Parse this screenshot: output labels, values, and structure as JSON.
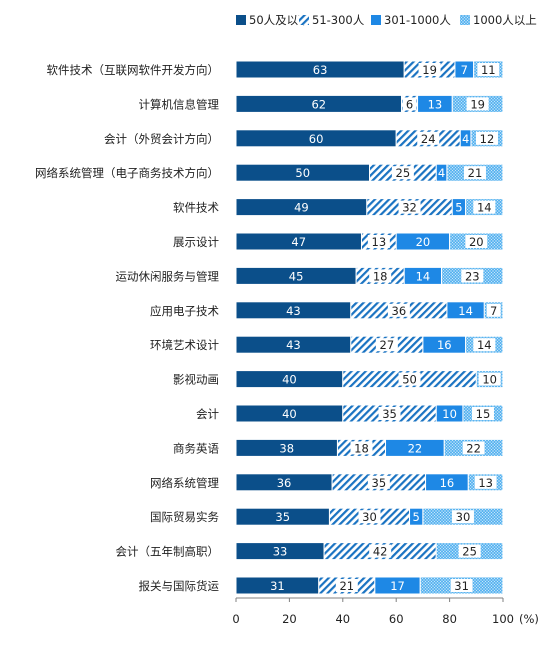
{
  "chart_data": {
    "type": "bar",
    "orientation": "horizontal",
    "stacked": true,
    "categories": [
      "软件技术（互联网软件开发方向）",
      "计算机信息管理",
      "会计（外贸会计方向）",
      "网络系统管理（电子商务技术方向）",
      "软件技术",
      "展示设计",
      "运动休闲服务与管理",
      "应用电子技术",
      "环境艺术设计",
      "影视动画",
      "会计",
      "商务英语",
      "网络系统管理",
      "国际贸易实务",
      "会计（五年制高职）",
      "报关与国际货运"
    ],
    "series": [
      {
        "name": "50人及以下",
        "color": "#0b4f8a",
        "pattern": "solid",
        "values": [
          63,
          62,
          60,
          50,
          49,
          47,
          45,
          43,
          43,
          40,
          40,
          38,
          36,
          35,
          33,
          31
        ]
      },
      {
        "name": "51-300人",
        "color": "#1a73c2",
        "pattern": "diagonal",
        "values": [
          19,
          6,
          24,
          25,
          32,
          13,
          18,
          36,
          27,
          50,
          35,
          18,
          35,
          30,
          42,
          21
        ]
      },
      {
        "name": "301-1000人",
        "color": "#1e88e5",
        "pattern": "solid",
        "values": [
          7,
          13,
          4,
          4,
          5,
          20,
          14,
          14,
          16,
          0,
          10,
          22,
          16,
          5,
          0,
          17
        ]
      },
      {
        "name": "1000人以上",
        "color": "#5ab4f0",
        "pattern": "dots",
        "values": [
          11,
          19,
          12,
          21,
          14,
          20,
          23,
          7,
          14,
          10,
          15,
          22,
          13,
          30,
          25,
          31
        ]
      }
    ],
    "data_labels": [
      [
        "63",
        "19",
        "7",
        "11"
      ],
      [
        "62",
        "6",
        "13",
        "19"
      ],
      [
        "60",
        "24",
        "4",
        "12"
      ],
      [
        "50",
        "25",
        "4",
        "21"
      ],
      [
        "49",
        "32",
        "5",
        "14"
      ],
      [
        "47",
        "13",
        "20",
        "20"
      ],
      [
        "45",
        "18",
        "14",
        "23"
      ],
      [
        "43",
        "36",
        "14",
        "7"
      ],
      [
        "43",
        "27",
        "16",
        "14"
      ],
      [
        "40",
        "50",
        "",
        "10"
      ],
      [
        "40",
        "35",
        "10",
        "15"
      ],
      [
        "38",
        "18",
        "22",
        "22"
      ],
      [
        "36",
        "35",
        "16",
        "13"
      ],
      [
        "35",
        "30",
        "5",
        "30"
      ],
      [
        "33",
        "42",
        "",
        "25"
      ],
      [
        "31",
        "21",
        "17",
        "31"
      ]
    ],
    "xlim": [
      0,
      100
    ],
    "xticks": [
      "0",
      "20",
      "40",
      "60",
      "80",
      "100"
    ],
    "xunit": "(%)",
    "legend_position": "top-right",
    "grid": false
  }
}
